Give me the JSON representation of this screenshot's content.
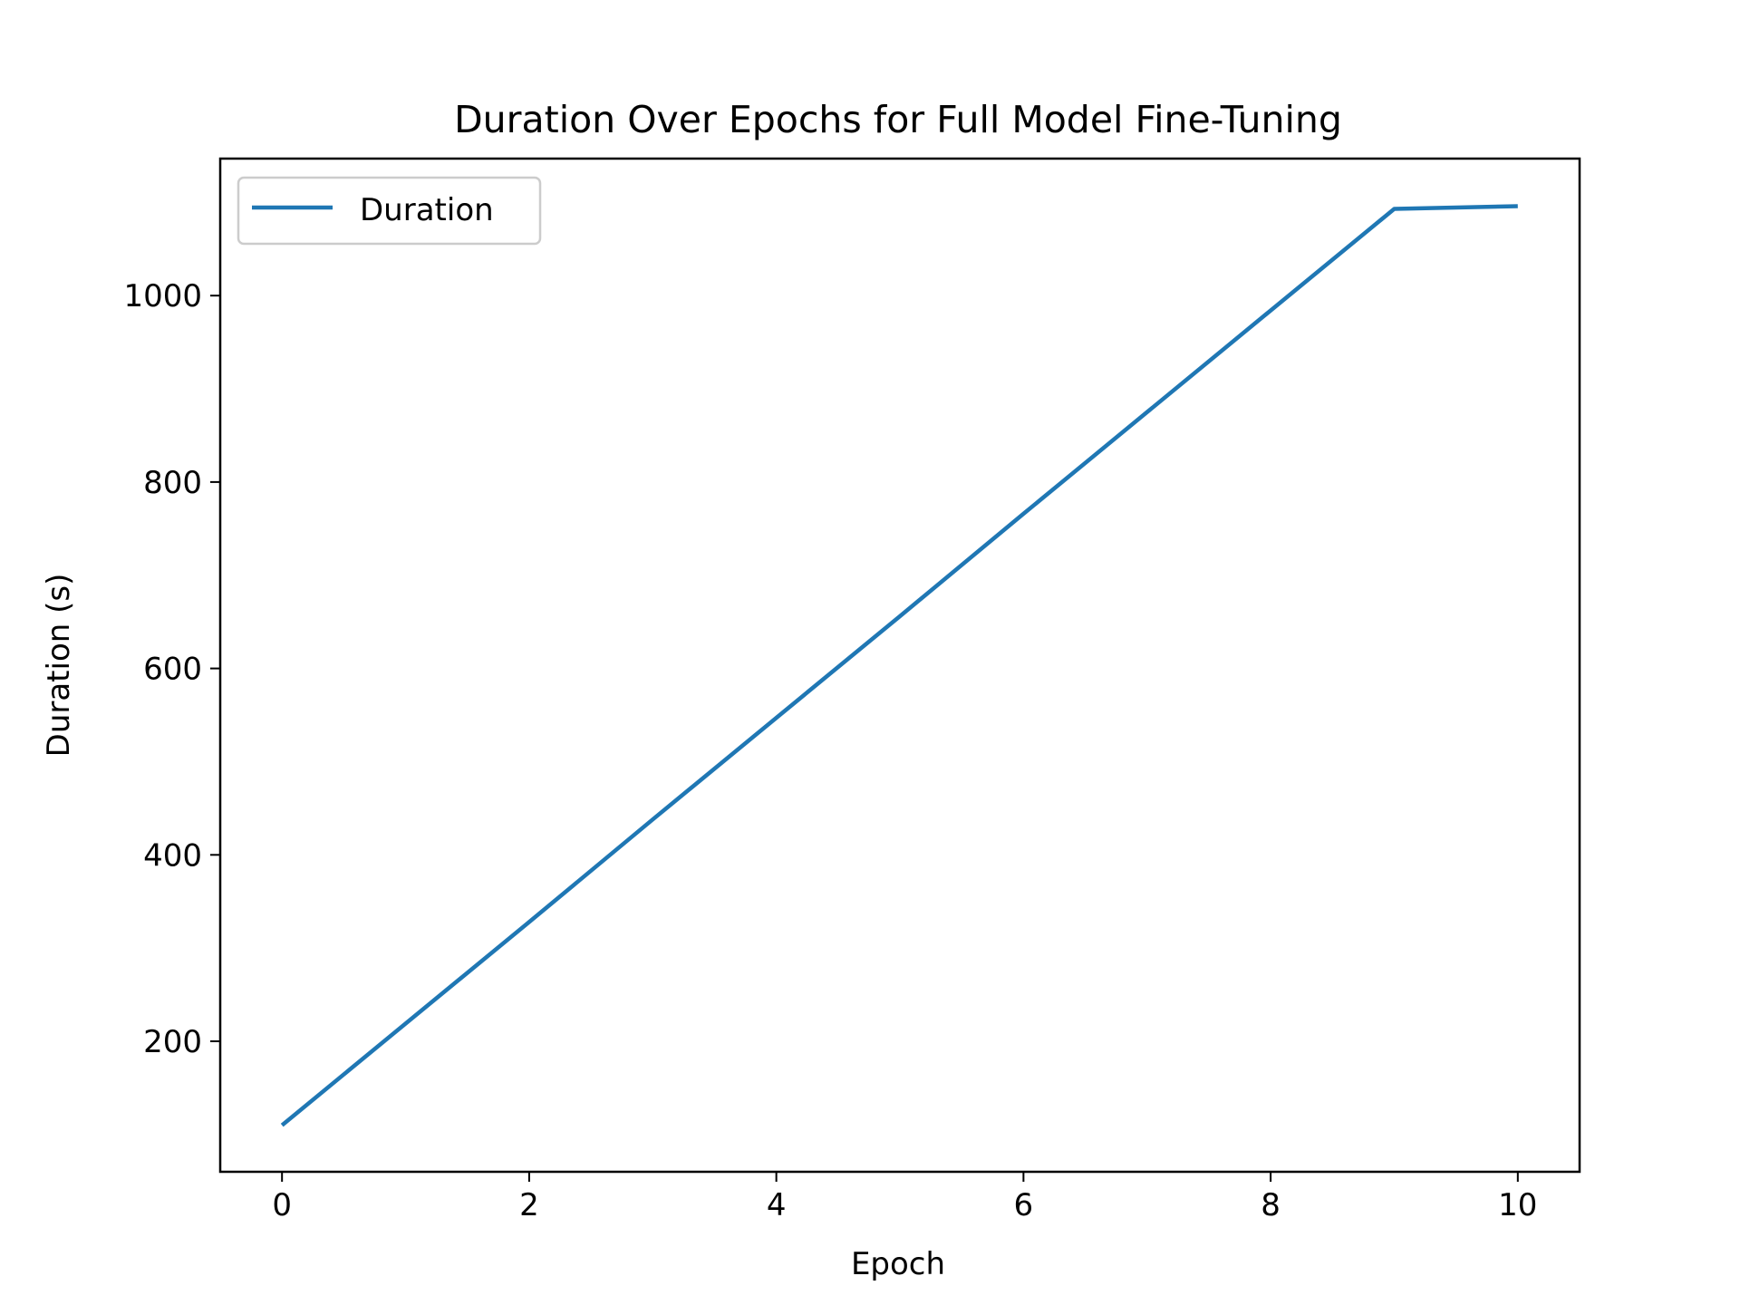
{
  "chart_data": {
    "type": "line",
    "title": "Duration Over Epochs for Full Model Fine-Tuning",
    "xlabel": "Epoch",
    "ylabel": "Duration (s)",
    "x": [
      0,
      1,
      2,
      3,
      4,
      5,
      6,
      7,
      8,
      9,
      10
    ],
    "series": [
      {
        "name": "Duration",
        "values": [
          110,
          219,
          328,
          438,
          547,
          656,
          766,
          875,
          984,
          1093,
          1096
        ],
        "color": "#1f77b4"
      }
    ],
    "xlim": [
      -0.5,
      10.5
    ],
    "ylim": [
      60,
      1147
    ],
    "xticks": [
      0,
      2,
      4,
      6,
      8,
      10
    ],
    "yticks": [
      200,
      400,
      600,
      800,
      1000
    ],
    "xtick_labels": [
      "0",
      "2",
      "4",
      "6",
      "8",
      "10"
    ],
    "ytick_labels": [
      "200",
      "400",
      "600",
      "800",
      "1000"
    ],
    "legend": {
      "position": "top-left"
    },
    "grid": false
  }
}
